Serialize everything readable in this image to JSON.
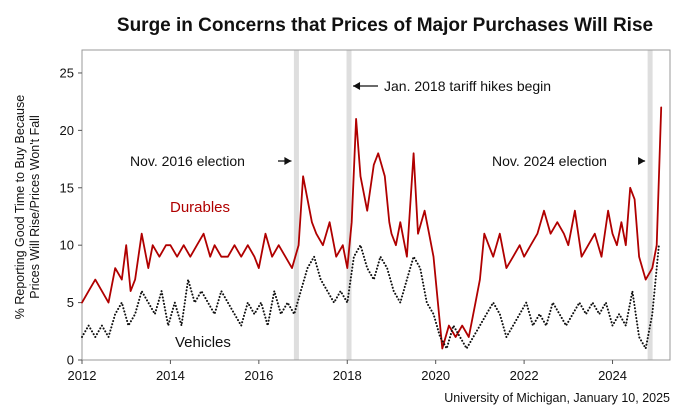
{
  "chart_data": {
    "type": "line",
    "title": "Surge in Concerns that Prices of Major Purchases Will Rise",
    "ylabel_lines": [
      "% Reporting Good Time to Buy Because",
      "Prices Will Rise/Prices Won't Fall"
    ],
    "xlabel": "",
    "xlim": [
      2012,
      2025.3
    ],
    "ylim": [
      0,
      27
    ],
    "xticks": [
      2012,
      2014,
      2016,
      2018,
      2020,
      2022,
      2024
    ],
    "yticks": [
      0,
      5,
      10,
      15,
      20,
      25
    ],
    "shaded_periods": [
      {
        "name": "Nov. 2016 election",
        "x": 2016.85
      },
      {
        "name": "Jan. 2018 tariff hikes begin",
        "x": 2018.04
      },
      {
        "name": "Nov. 2024 election",
        "x": 2024.85
      }
    ],
    "annotations": [
      {
        "text": "Nov. 2016 election",
        "target": 2016.85,
        "arrow": "right"
      },
      {
        "text": "Jan. 2018 tariff hikes begin",
        "target": 2018.04,
        "arrow": "left"
      },
      {
        "text": "Nov. 2024 election",
        "target": 2024.85,
        "arrow": "right"
      }
    ],
    "series": [
      {
        "name": "Durables",
        "color": "#b00000",
        "style": "solid",
        "x": [
          2012.0,
          2012.15,
          2012.3,
          2012.45,
          2012.6,
          2012.75,
          2012.9,
          2013.0,
          2013.1,
          2013.2,
          2013.35,
          2013.5,
          2013.6,
          2013.75,
          2013.9,
          2014.0,
          2014.15,
          2014.3,
          2014.45,
          2014.6,
          2014.75,
          2014.9,
          2015.0,
          2015.15,
          2015.3,
          2015.45,
          2015.6,
          2015.75,
          2015.9,
          2016.0,
          2016.15,
          2016.3,
          2016.45,
          2016.6,
          2016.75,
          2016.9,
          2017.0,
          2017.1,
          2017.2,
          2017.3,
          2017.45,
          2017.6,
          2017.75,
          2017.9,
          2018.0,
          2018.1,
          2018.2,
          2018.3,
          2018.45,
          2018.6,
          2018.7,
          2018.85,
          2018.95,
          2019.0,
          2019.1,
          2019.2,
          2019.35,
          2019.5,
          2019.6,
          2019.75,
          2019.85,
          2019.95,
          2020.05,
          2020.15,
          2020.3,
          2020.45,
          2020.6,
          2020.75,
          2020.9,
          2021.0,
          2021.1,
          2021.2,
          2021.3,
          2021.45,
          2021.6,
          2021.75,
          2021.9,
          2022.0,
          2022.15,
          2022.3,
          2022.45,
          2022.6,
          2022.75,
          2022.9,
          2023.0,
          2023.15,
          2023.3,
          2023.45,
          2023.6,
          2023.75,
          2023.9,
          2024.0,
          2024.1,
          2024.2,
          2024.3,
          2024.4,
          2024.5,
          2024.6,
          2024.75,
          2024.9,
          2025.0,
          2025.1
        ],
        "values": [
          5,
          6,
          7,
          6,
          5,
          8,
          7,
          10,
          6,
          7,
          11,
          8,
          10,
          9,
          10,
          10,
          9,
          10,
          9,
          10,
          11,
          9,
          10,
          9,
          9,
          10,
          9,
          10,
          9,
          8,
          11,
          9,
          10,
          9,
          8,
          10,
          16,
          14,
          12,
          11,
          10,
          12,
          9,
          10,
          8,
          12,
          21,
          16,
          13,
          17,
          18,
          16,
          12,
          11,
          10,
          12,
          9,
          18,
          11,
          13,
          11,
          9,
          5,
          1,
          3,
          2,
          3,
          2,
          5,
          7,
          11,
          10,
          9,
          11,
          8,
          9,
          10,
          9,
          10,
          11,
          13,
          11,
          12,
          11,
          10,
          13,
          9,
          10,
          11,
          9,
          13,
          11,
          10,
          12,
          10,
          15,
          14,
          9,
          7,
          8,
          10,
          22
        ]
      },
      {
        "name": "Vehicles",
        "color": "#111111",
        "style": "dotted",
        "x": [
          2012.0,
          2012.15,
          2012.3,
          2012.45,
          2012.6,
          2012.75,
          2012.9,
          2013.05,
          2013.2,
          2013.35,
          2013.5,
          2013.65,
          2013.8,
          2013.95,
          2014.1,
          2014.25,
          2014.4,
          2014.55,
          2014.7,
          2014.85,
          2015.0,
          2015.15,
          2015.3,
          2015.45,
          2015.6,
          2015.75,
          2015.9,
          2016.05,
          2016.2,
          2016.35,
          2016.5,
          2016.65,
          2016.8,
          2016.95,
          2017.1,
          2017.25,
          2017.4,
          2017.55,
          2017.7,
          2017.85,
          2018.0,
          2018.15,
          2018.3,
          2018.45,
          2018.6,
          2018.75,
          2018.9,
          2019.05,
          2019.2,
          2019.35,
          2019.5,
          2019.65,
          2019.8,
          2019.95,
          2020.1,
          2020.25,
          2020.4,
          2020.55,
          2020.7,
          2020.85,
          2021.0,
          2021.15,
          2021.3,
          2021.45,
          2021.6,
          2021.75,
          2021.9,
          2022.05,
          2022.2,
          2022.35,
          2022.5,
          2022.65,
          2022.8,
          2022.95,
          2023.1,
          2023.25,
          2023.4,
          2023.55,
          2023.7,
          2023.85,
          2024.0,
          2024.15,
          2024.3,
          2024.45,
          2024.6,
          2024.75,
          2024.9,
          2025.05
        ],
        "values": [
          2,
          3,
          2,
          3,
          2,
          4,
          5,
          3,
          4,
          6,
          5,
          4,
          6,
          3,
          5,
          3,
          7,
          5,
          6,
          5,
          4,
          6,
          5,
          4,
          3,
          5,
          4,
          5,
          3,
          6,
          4,
          5,
          4,
          6,
          8,
          9,
          7,
          6,
          5,
          6,
          5,
          9,
          10,
          8,
          7,
          9,
          8,
          6,
          5,
          7,
          9,
          8,
          5,
          4,
          2,
          1,
          3,
          2,
          1,
          2,
          3,
          4,
          5,
          4,
          2,
          3,
          4,
          5,
          3,
          4,
          3,
          5,
          4,
          3,
          4,
          5,
          4,
          5,
          4,
          5,
          3,
          4,
          3,
          6,
          2,
          1,
          4,
          10
        ]
      }
    ],
    "series_labels": [
      "Durables",
      "Vehicles"
    ],
    "source": "University of Michigan, January 10, 2025"
  }
}
